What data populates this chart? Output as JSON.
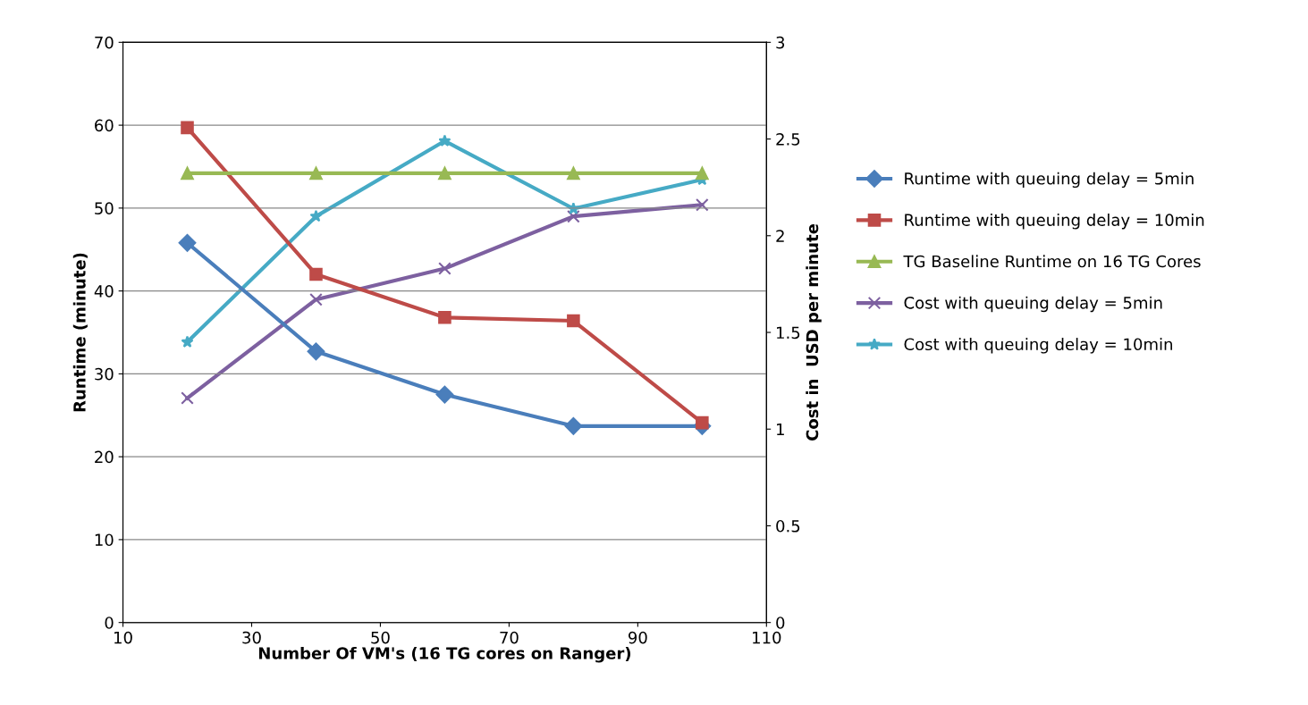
{
  "chart_data": {
    "type": "line",
    "xlabel": "Number Of VM's (16 TG cores on Ranger)",
    "ylabel": "Runtime (minute)",
    "y2label": "Cost in  USD per minute",
    "x": [
      20,
      40,
      60,
      80,
      100
    ],
    "xlim": [
      10,
      110
    ],
    "xticks": [
      10,
      30,
      50,
      70,
      90,
      110
    ],
    "ylim": [
      0,
      70
    ],
    "yticks": [
      0,
      10,
      20,
      30,
      40,
      50,
      60,
      70
    ],
    "y2lim": [
      0,
      3
    ],
    "y2ticks": [
      0,
      0.5,
      1,
      1.5,
      2,
      2.5,
      3
    ],
    "grid": "y",
    "legend": "right",
    "series": [
      {
        "name": "Runtime with queuing delay = 5min",
        "color": "#4a7ebb",
        "marker": "diamond",
        "values": [
          45.8,
          32.7,
          27.5,
          23.7,
          23.7
        ]
      },
      {
        "name": "Runtime with queuing delay = 10min",
        "color": "#be4b48",
        "marker": "square",
        "values": [
          59.7,
          42.0,
          36.8,
          36.4,
          24.1
        ]
      },
      {
        "name": "TG Baseline Runtime on 16 TG Cores",
        "color": "#98b954",
        "marker": "triangle",
        "values": [
          54.2,
          54.2,
          54.2,
          54.2,
          54.2
        ]
      },
      {
        "name": "Cost with queuing delay = 5min",
        "color": "#7d60a0",
        "marker": "cross",
        "axis": "y2",
        "values": [
          1.16,
          1.67,
          1.83,
          2.1,
          2.16
        ]
      },
      {
        "name": "Cost with queuing delay = 10min",
        "color": "#46aac5",
        "marker": "star",
        "axis": "y2",
        "values": [
          1.45,
          2.1,
          2.49,
          2.14,
          2.29
        ]
      }
    ]
  }
}
